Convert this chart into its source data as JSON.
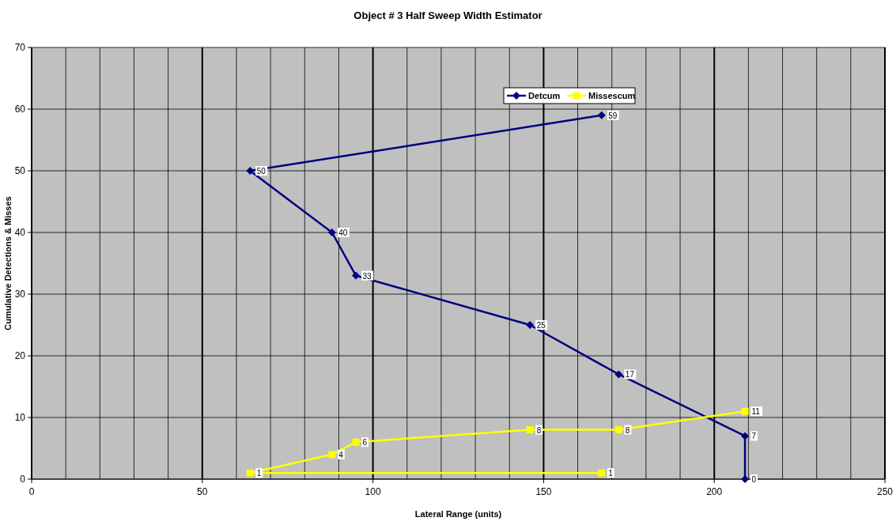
{
  "chart_data": {
    "type": "line",
    "title": "Object # 3 Half Sweep Width Estimator",
    "xlabel": "Lateral Range (units)",
    "ylabel": "Cumulative Detections & Misses",
    "xlim": [
      0,
      250
    ],
    "xticks": [
      0,
      {
        "value": 10,
        "label": null
      },
      {
        "value": 20,
        "label": null
      },
      {
        "value": 30,
        "label": null
      },
      {
        "value": 40,
        "label": null
      },
      50,
      {
        "value": 60,
        "label": null
      },
      {
        "value": 70,
        "label": null
      },
      {
        "value": 80,
        "label": null
      },
      {
        "value": 90,
        "label": null
      },
      100,
      {
        "value": 110,
        "label": null
      },
      {
        "value": 120,
        "label": null
      },
      {
        "value": 130,
        "label": null
      },
      {
        "value": 140,
        "label": null
      },
      150,
      {
        "value": 160,
        "label": null
      },
      {
        "value": 170,
        "label": null
      },
      {
        "value": 180,
        "label": null
      },
      {
        "value": 190,
        "label": null
      },
      200,
      {
        "value": 210,
        "label": null
      },
      {
        "value": 220,
        "label": null
      },
      {
        "value": 230,
        "label": null
      },
      {
        "value": 240,
        "label": null
      },
      250
    ],
    "ylim": [
      0,
      70
    ],
    "yticks": [
      0,
      10,
      20,
      30,
      40,
      50,
      60,
      70
    ],
    "grid": true,
    "legend": "top right",
    "data_labels": true,
    "series": [
      {
        "name": "Detcum",
        "color": "#000080",
        "marker": "diamond",
        "x": [
          167,
          64,
          88,
          95,
          146,
          172,
          209,
          209
        ],
        "values": [
          59,
          50,
          40,
          33,
          25,
          17,
          7,
          0
        ]
      },
      {
        "name": "Missescum",
        "color": "#ffff00",
        "marker": "square",
        "x": [
          167,
          64,
          88,
          95,
          146,
          172,
          209
        ],
        "values": [
          1,
          1,
          4,
          6,
          8,
          8,
          11
        ]
      }
    ]
  }
}
